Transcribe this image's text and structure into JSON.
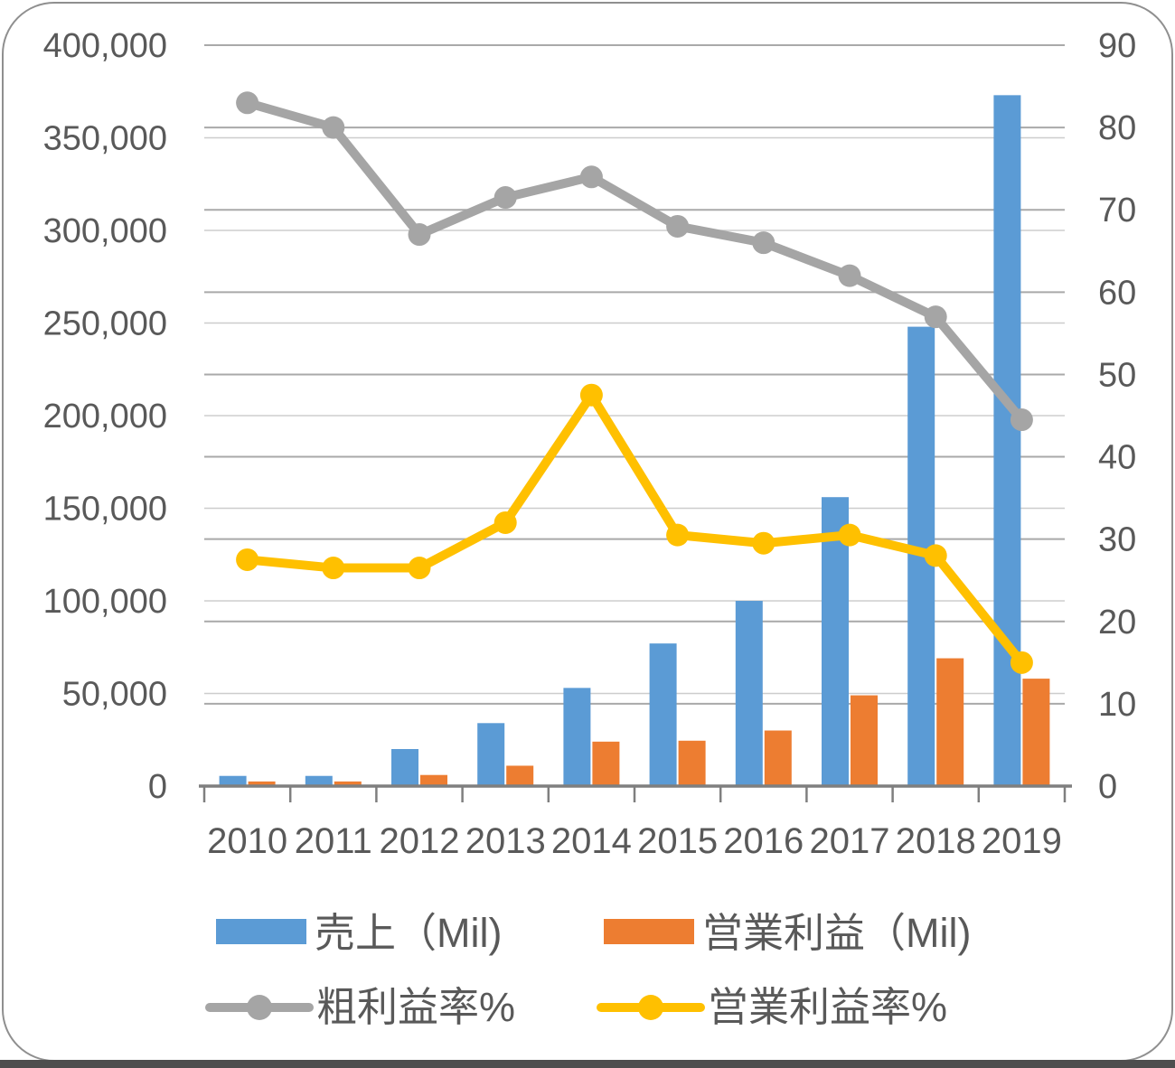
{
  "window": {
    "background": "#FFFFFF",
    "frame_border_color": "#8F8F8F",
    "bottom_edge_color": "#4E4E4E"
  },
  "chart_data": {
    "type": "combo-bar-line",
    "title": "",
    "categories": [
      "2010",
      "2011",
      "2012",
      "2013",
      "2014",
      "2015",
      "2016",
      "2017",
      "2018",
      "2019"
    ],
    "series": [
      {
        "name": "売上（Mil)",
        "type": "bar",
        "axis": "left",
        "color": "#5B9BD5",
        "values": [
          5500,
          5500,
          20000,
          34000,
          53000,
          77000,
          100000,
          156000,
          248000,
          373000
        ]
      },
      {
        "name": "営業利益（Mil)",
        "type": "bar",
        "axis": "left",
        "color": "#ED7D31",
        "values": [
          2500,
          2500,
          6000,
          11000,
          24000,
          24500,
          30000,
          49000,
          69000,
          58000
        ]
      },
      {
        "name": "粗利益率%",
        "type": "line",
        "axis": "right",
        "color": "#A5A5A5",
        "values": [
          83,
          80,
          67,
          71.5,
          74,
          68,
          66,
          62,
          57,
          44.5
        ]
      },
      {
        "name": "営業利益率%",
        "type": "line",
        "axis": "right",
        "color": "#FFC000",
        "values": [
          27.5,
          26.5,
          26.5,
          32,
          47.5,
          30.5,
          29.5,
          30.5,
          28,
          15
        ]
      }
    ],
    "left_axis": {
      "min": 0,
      "max": 400000,
      "step": 50000,
      "tick_labels": [
        "0",
        "50,000",
        "100,000",
        "150,000",
        "200,000",
        "250,000",
        "300,000",
        "350,000",
        "400,000"
      ]
    },
    "right_axis": {
      "min": 0,
      "max": 90,
      "step": 10,
      "tick_labels": [
        "0",
        "10",
        "20",
        "30",
        "40",
        "50",
        "60",
        "70",
        "80",
        "90"
      ]
    },
    "grid": true,
    "legend_position": "bottom",
    "text_color": "#595959",
    "gridline_color_major": "#A9A9A9",
    "gridline_color_minor": "#CDCDCD",
    "axis_line_color": "#7F7F7F"
  }
}
